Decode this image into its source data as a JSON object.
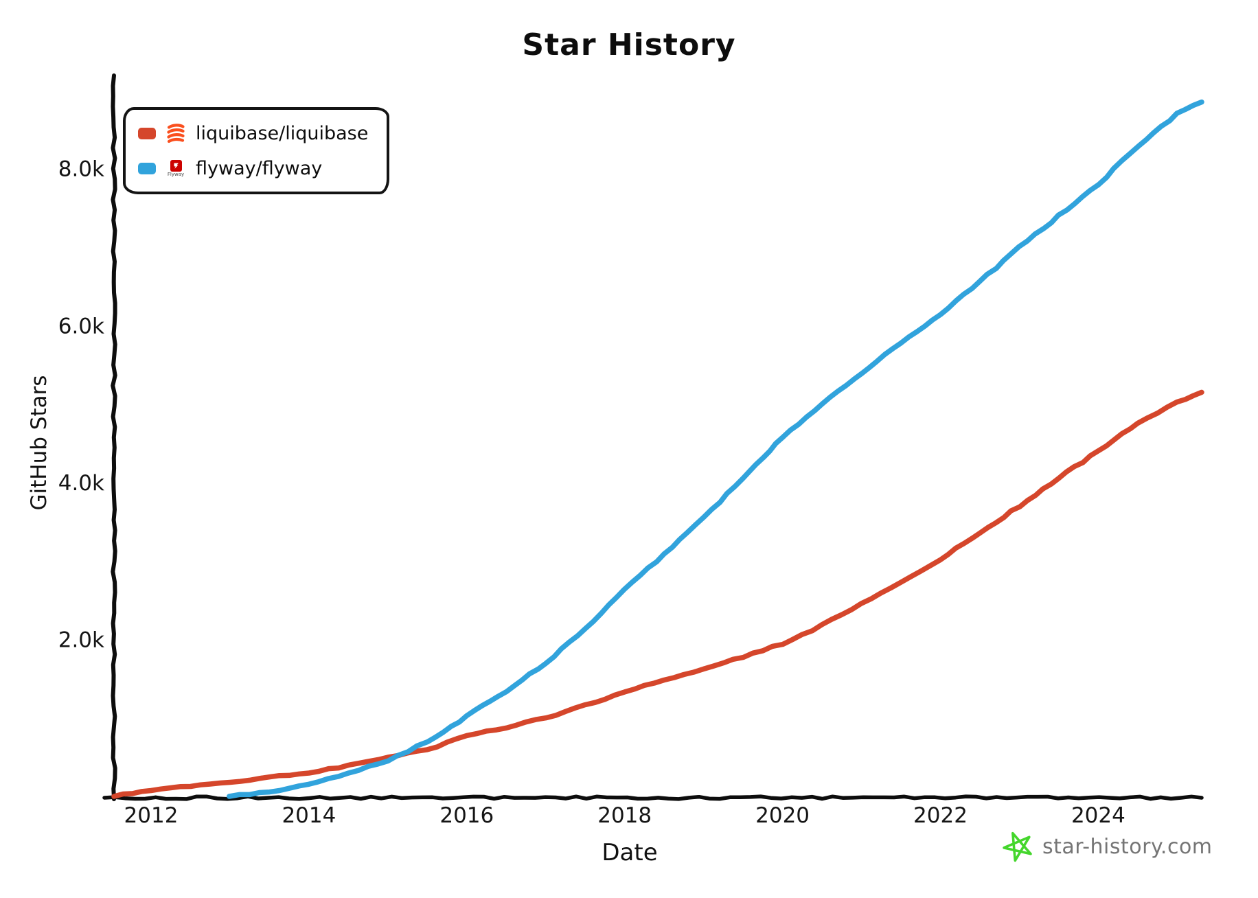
{
  "legend": {
    "items": [
      {
        "label": "liquibase/liquibase",
        "logo": "liquibase-logo"
      },
      {
        "label": "flyway/flyway",
        "logo": "flyway-logo",
        "logo_text": "Flyway"
      }
    ]
  },
  "footer": {
    "brand_text": "star-history.com",
    "star_color": "#44d62c",
    "text_color": "#757575"
  },
  "colors": {
    "liquibase_line": "#d5462b",
    "flyway_line": "#31a3dc",
    "liquibase_logo_orange": "#fa4f1e",
    "flyway_logo_red": "#cc0200",
    "axis": "#0d0d0d"
  },
  "chart_data": {
    "type": "line",
    "title": "Star History",
    "xlabel": "Date",
    "ylabel": "GitHub Stars",
    "xlim": [
      2011.53,
      2025.31
    ],
    "ylim": [
      0,
      9100
    ],
    "grid": false,
    "legend_position": "top-left",
    "x_ticks": [
      2012,
      2014,
      2016,
      2018,
      2020,
      2022,
      2024
    ],
    "y_ticks": [
      {
        "value": 2000,
        "label": "2.0k"
      },
      {
        "value": 4000,
        "label": "4.0k"
      },
      {
        "value": 6000,
        "label": "6.0k"
      },
      {
        "value": 8000,
        "label": "8.0k"
      }
    ],
    "series": [
      {
        "name": "liquibase/liquibase",
        "color": "#d5462b",
        "x": [
          2011.53,
          2012,
          2012.5,
          2013,
          2013.5,
          2014,
          2014.5,
          2015,
          2015.5,
          2016,
          2016.5,
          2017,
          2017.5,
          2018,
          2018.5,
          2019,
          2019.5,
          2020,
          2020.5,
          2021,
          2021.5,
          2022,
          2022.5,
          2023,
          2023.5,
          2024,
          2024.5,
          2025,
          2025.31
        ],
        "y": [
          0,
          80,
          135,
          185,
          245,
          300,
          395,
          505,
          590,
          775,
          880,
          1000,
          1160,
          1330,
          1480,
          1625,
          1780,
          1945,
          2180,
          2450,
          2720,
          3020,
          3360,
          3700,
          4060,
          4400,
          4760,
          5020,
          5150
        ]
      },
      {
        "name": "flyway/flyway",
        "color": "#31a3dc",
        "x": [
          2012.99,
          2013.5,
          2014,
          2014.5,
          2015,
          2015.5,
          2016,
          2016.5,
          2017,
          2017.5,
          2018,
          2018.5,
          2019,
          2019.5,
          2020,
          2020.5,
          2021,
          2021.5,
          2022,
          2022.5,
          2023,
          2023.5,
          2024,
          2024.5,
          2025,
          2025.31
        ],
        "y": [
          0,
          60,
          150,
          290,
          455,
          700,
          1020,
          1340,
          1700,
          2140,
          2630,
          3090,
          3550,
          4060,
          4580,
          5010,
          5400,
          5780,
          6140,
          6560,
          7000,
          7400,
          7800,
          8290,
          8700,
          8850
        ]
      }
    ]
  }
}
